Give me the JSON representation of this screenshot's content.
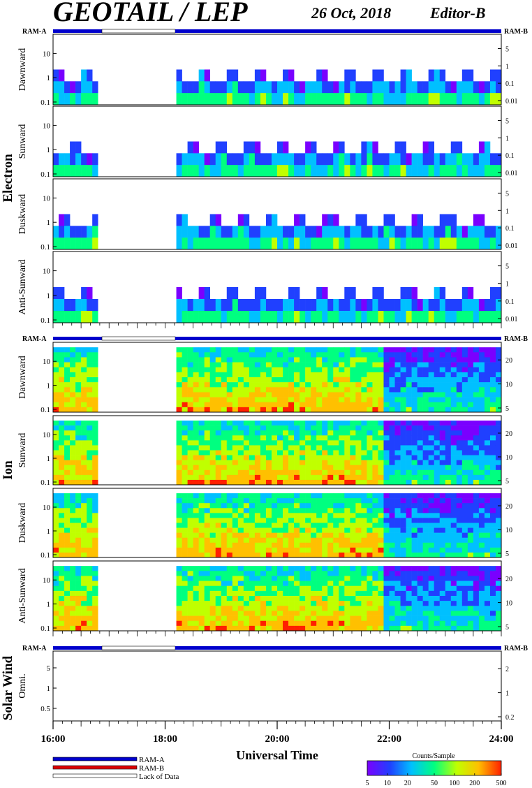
{
  "header": {
    "title": "GEOTAIL / LEP",
    "date": "26 Oct, 2018",
    "editor": "Editor-B"
  },
  "ram": {
    "left": "RAM-A",
    "right": "RAM-B"
  },
  "groups": [
    {
      "label": "Electron",
      "panels": [
        "Dawnward",
        "Sunward",
        "Duskward",
        "Anti-Sunward"
      ],
      "left_ticks": [
        "0.1",
        "1",
        "10"
      ],
      "right_ticks": [
        "0.01",
        "0.1",
        "1",
        "5"
      ]
    },
    {
      "label": "Ion",
      "panels": [
        "Dawnward",
        "Sunward",
        "Duskward",
        "Anti-Sunward"
      ],
      "left_ticks": [
        "0.1",
        "1",
        "10"
      ],
      "right_ticks": [
        "5",
        "10",
        "20"
      ]
    },
    {
      "label": "Solar Wind",
      "panels": [
        "Omni."
      ],
      "left_ticks": [
        "0.5",
        "1",
        "5"
      ],
      "right_ticks": [
        "0.2",
        "1",
        "2"
      ]
    }
  ],
  "x_axis": {
    "title": "Universal Time",
    "ticks": [
      "16:00",
      "18:00",
      "20:00",
      "22:00",
      "24:00"
    ]
  },
  "legend": {
    "items": [
      {
        "label": "RAM-A",
        "color": "#0000cc"
      },
      {
        "label": "RAM-B",
        "color": "#dd0000"
      },
      {
        "label": "Lack of Data",
        "color": "#ffffff"
      }
    ]
  },
  "colorbar": {
    "title": "Counts/Sample",
    "ticks": [
      "5",
      "10",
      "20",
      "50",
      "100",
      "200",
      "500"
    ],
    "colors": [
      "#7a00ff",
      "#2040ff",
      "#00c0ff",
      "#00ff80",
      "#c0ff00",
      "#ffc000",
      "#ff2000"
    ]
  },
  "chart_data": {
    "type": "heatmap",
    "title": "GEOTAIL / LEP",
    "xlabel": "Universal Time",
    "xlim": [
      "16:00",
      "24:00"
    ],
    "data_gap": [
      "16:52",
      "18:10"
    ],
    "colorbar_label": "Counts/Sample",
    "colorbar_range": [
      5,
      500
    ],
    "panels": [
      {
        "group": "Electron",
        "name": "Dawnward"
      },
      {
        "group": "Electron",
        "name": "Sunward"
      },
      {
        "group": "Electron",
        "name": "Duskward"
      },
      {
        "group": "Electron",
        "name": "Anti-Sunward"
      },
      {
        "group": "Ion",
        "name": "Dawnward"
      },
      {
        "group": "Ion",
        "name": "Sunward"
      },
      {
        "group": "Ion",
        "name": "Duskward"
      },
      {
        "group": "Ion",
        "name": "Anti-Sunward"
      },
      {
        "group": "Solar Wind",
        "name": "Omni."
      }
    ]
  }
}
